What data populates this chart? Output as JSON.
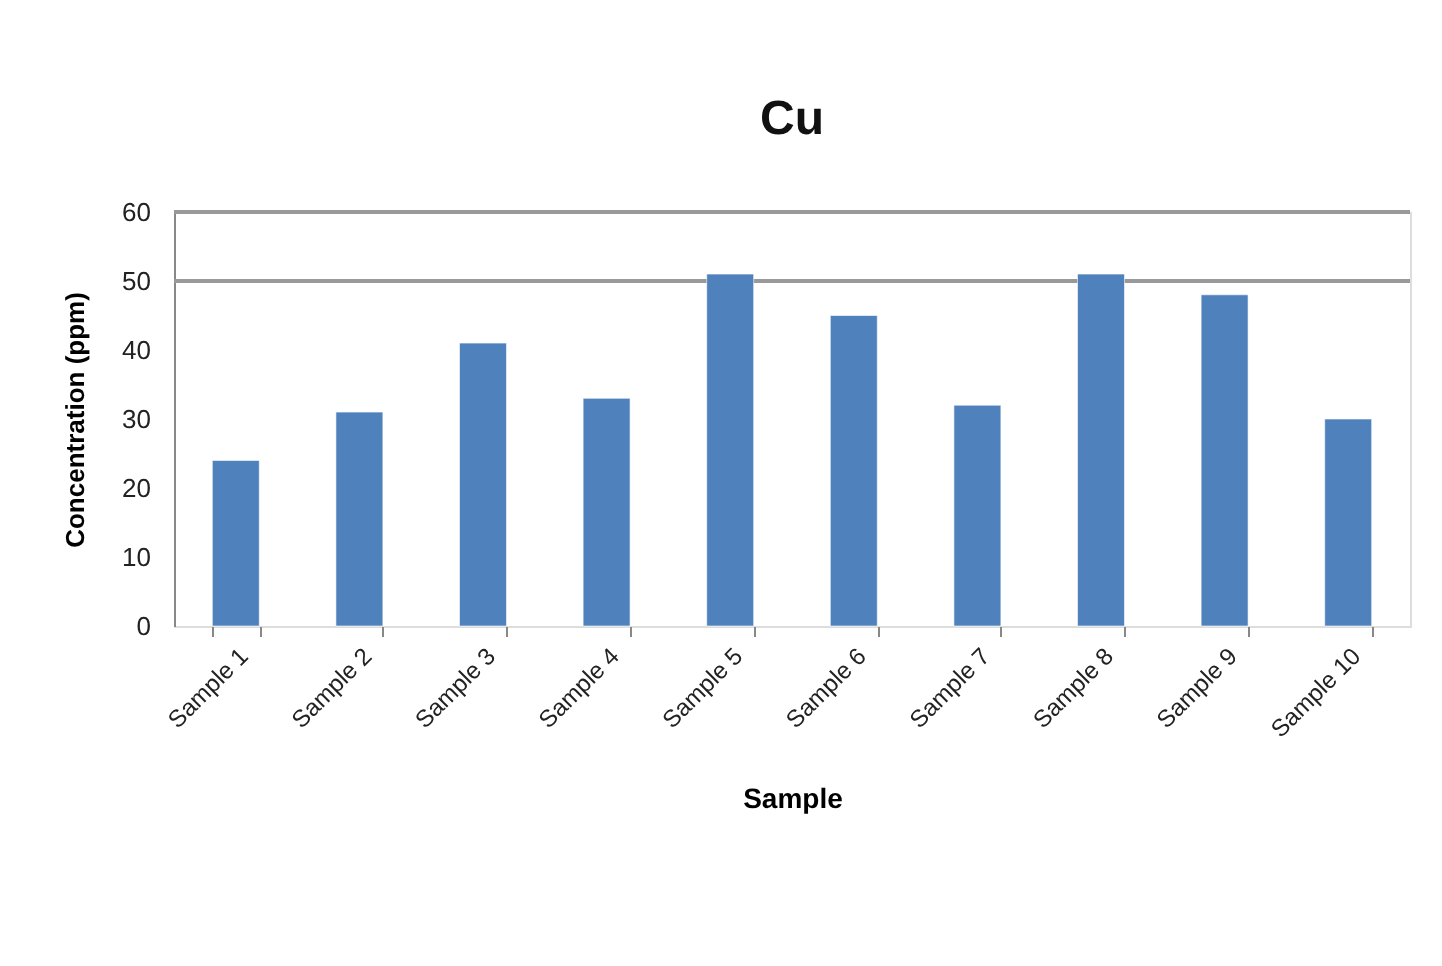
{
  "chart_data": {
    "type": "bar",
    "title": "Cu",
    "xlabel": "Sample",
    "ylabel": "Concentration (ppm)",
    "categories": [
      "Sample 1",
      "Sample 2",
      "Sample 3",
      "Sample 4",
      "Sample 5",
      "Sample 6",
      "Sample 7",
      "Sample 8",
      "Sample 9",
      "Sample 10"
    ],
    "values": [
      24,
      31,
      41,
      33,
      51,
      45,
      32,
      51,
      48,
      30
    ],
    "color": "#4f81bd",
    "ylim": [
      0,
      60
    ],
    "yticks": [
      0,
      10,
      20,
      30,
      40,
      50,
      60
    ],
    "ref_lines": [
      {
        "axis": "y",
        "value": 50,
        "color": "#999999"
      }
    ]
  }
}
